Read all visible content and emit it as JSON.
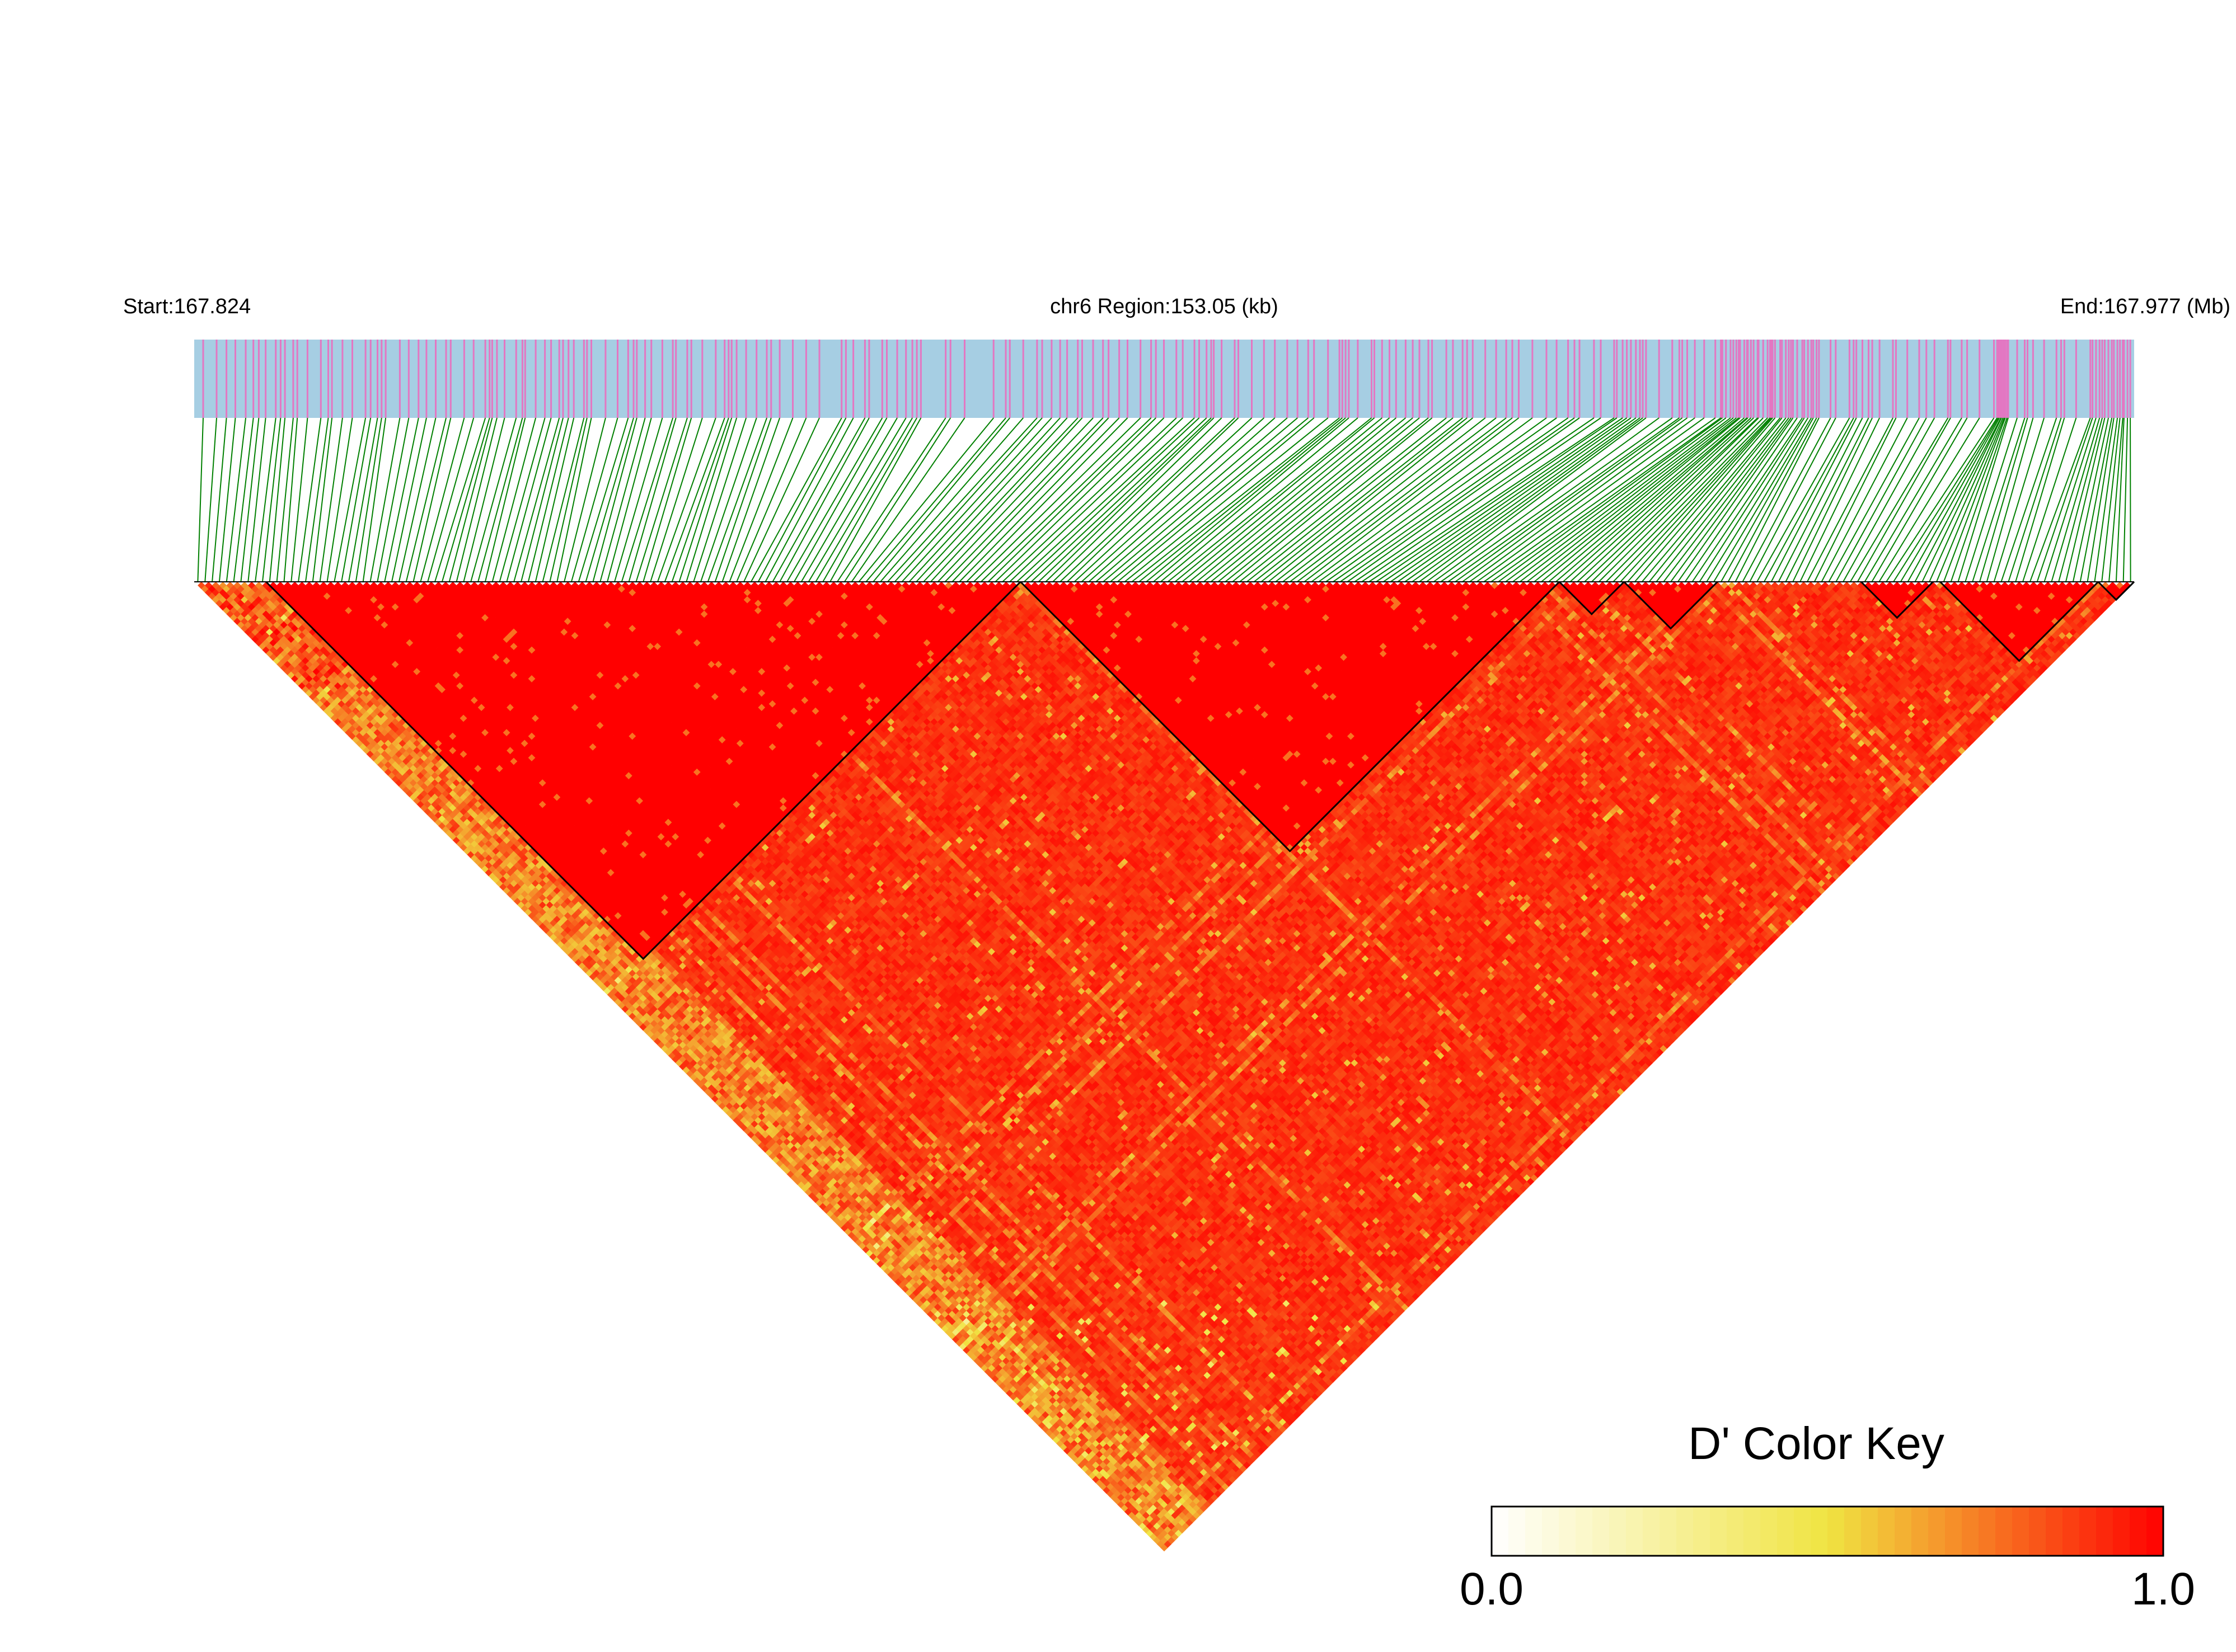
{
  "header": {
    "start_label": "Start:167.824",
    "region_label": "chr6 Region:153.05 (kb)",
    "end_label": "End:167.977 (Mb)"
  },
  "legend": {
    "title": "D' Color Key",
    "min_label": "0.0",
    "max_label": "1.0"
  },
  "colors": {
    "track_background": "#a6cee3",
    "snp_tick": "#e377c2",
    "connector_line": "#008000",
    "ld_high": "#ff0000",
    "ld_mid": "#f0e442",
    "ld_low": "#ffffff",
    "block_outline": "#000000"
  },
  "chart_data": {
    "type": "heatmap",
    "chromosome": "chr6",
    "region_start_mb": 167.824,
    "region_end_mb": 167.977,
    "region_length_kb": 153.05,
    "metric": "D'",
    "color_scale": {
      "min": 0.0,
      "max": 1.0,
      "colors": [
        "#ffffff",
        "#f0e442",
        "#ff0000"
      ]
    },
    "approx_snp_count": 270,
    "haplotype_blocks_snp_index": [
      [
        10,
        115
      ],
      [
        115,
        190
      ],
      [
        190,
        199
      ],
      [
        199,
        212
      ],
      [
        232,
        242
      ],
      [
        243,
        265
      ],
      [
        265,
        270
      ]
    ],
    "legend_position": "bottom-right"
  }
}
